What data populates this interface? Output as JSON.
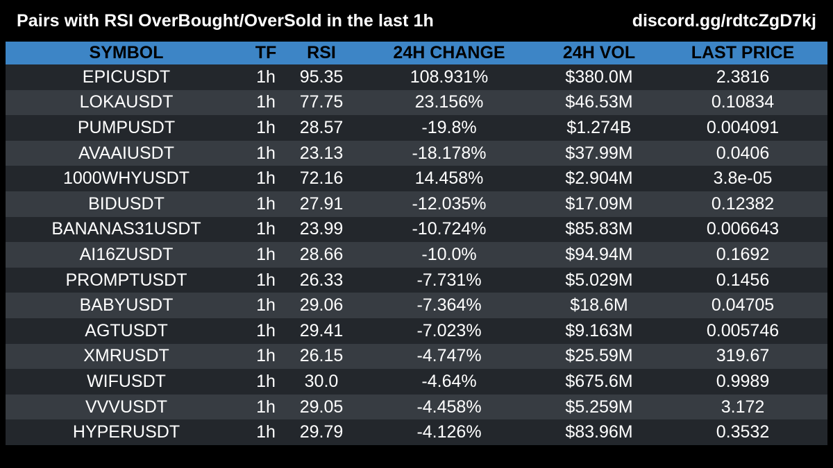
{
  "header": {
    "title": "Pairs with RSI OverBought/OverSold in the last 1h",
    "link": "discord.gg/rdtcZgD7kj"
  },
  "colors": {
    "background": "#000000",
    "header_row": "#3d85c6",
    "row_dark": "#23272c",
    "row_light": "#373c42",
    "text": "#ffffff",
    "header_text": "#000000"
  },
  "table": {
    "columns": [
      "SYMBOL",
      "TF",
      "RSI",
      "24H CHANGE",
      "24H VOL",
      "LAST PRICE"
    ],
    "rows": [
      [
        "EPICUSDT",
        "1h",
        "95.35",
        "108.931%",
        "$380.0M",
        "2.3816"
      ],
      [
        "LOKAUSDT",
        "1h",
        "77.75",
        "23.156%",
        "$46.53M",
        "0.10834"
      ],
      [
        "PUMPUSDT",
        "1h",
        "28.57",
        "-19.8%",
        "$1.274B",
        "0.004091"
      ],
      [
        "AVAAIUSDT",
        "1h",
        "23.13",
        "-18.178%",
        "$37.99M",
        "0.0406"
      ],
      [
        "1000WHYUSDT",
        "1h",
        "72.16",
        "14.458%",
        "$2.904M",
        "3.8e-05"
      ],
      [
        "BIDUSDT",
        "1h",
        "27.91",
        "-12.035%",
        "$17.09M",
        "0.12382"
      ],
      [
        "BANANAS31USDT",
        "1h",
        "23.99",
        "-10.724%",
        "$85.83M",
        "0.006643"
      ],
      [
        "AI16ZUSDT",
        "1h",
        "28.66",
        "-10.0%",
        "$94.94M",
        "0.1692"
      ],
      [
        "PROMPTUSDT",
        "1h",
        "26.33",
        "-7.731%",
        "$5.029M",
        "0.1456"
      ],
      [
        "BABYUSDT",
        "1h",
        "29.06",
        "-7.364%",
        "$18.6M",
        "0.04705"
      ],
      [
        "AGTUSDT",
        "1h",
        "29.41",
        "-7.023%",
        "$9.163M",
        "0.005746"
      ],
      [
        "XMRUSDT",
        "1h",
        "26.15",
        "-4.747%",
        "$25.59M",
        "319.67"
      ],
      [
        "WIFUSDT",
        "1h",
        "30.0",
        "-4.64%",
        "$675.6M",
        "0.9989"
      ],
      [
        "VVVUSDT",
        "1h",
        "29.05",
        "-4.458%",
        "$5.259M",
        "3.172"
      ],
      [
        "HYPERUSDT",
        "1h",
        "29.79",
        "-4.126%",
        "$83.96M",
        "0.3532"
      ]
    ]
  }
}
